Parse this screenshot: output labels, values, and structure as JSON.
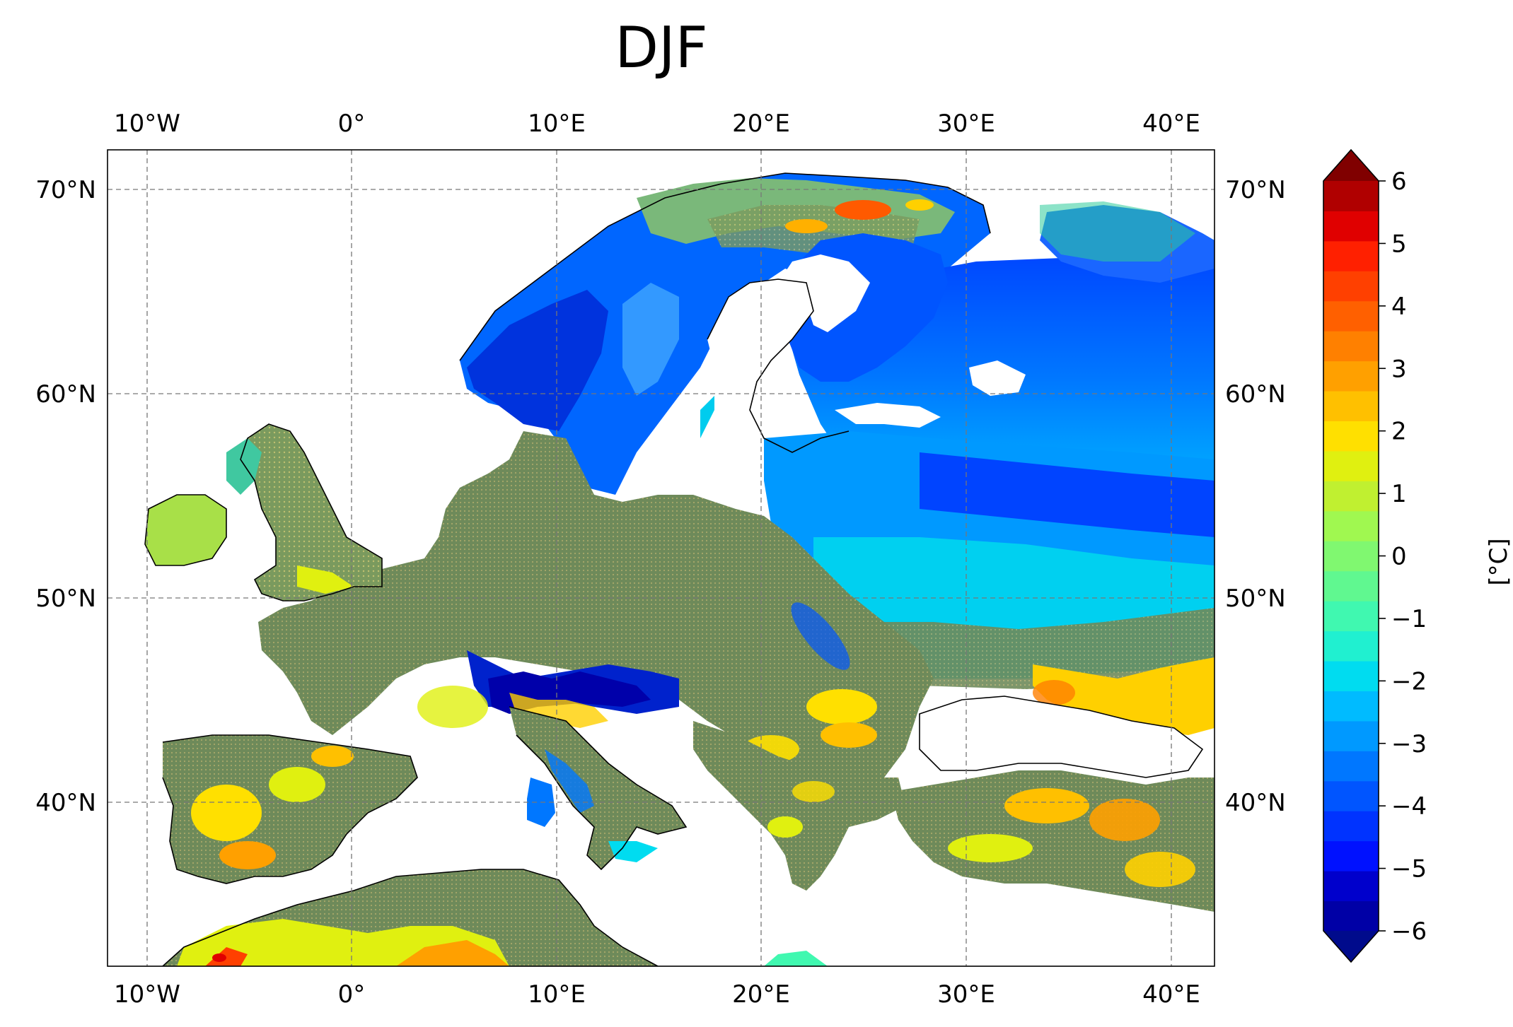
{
  "title": "DJF",
  "map": {
    "lon_ticks": [
      "10°W",
      "0°",
      "10°E",
      "20°E",
      "30°E",
      "40°E"
    ],
    "lat_ticks": [
      "70°N",
      "60°N",
      "50°N",
      "40°N"
    ],
    "gridlines": "dashed"
  },
  "colorbar": {
    "label": "[°C]",
    "ticks": [
      "6",
      "5",
      "4",
      "3",
      "2",
      "1",
      "0",
      "−1",
      "−2",
      "−3",
      "−4",
      "−5",
      "−6"
    ],
    "range": [
      -6,
      6
    ],
    "extend": "both",
    "colormap": "jet",
    "colors": [
      "#000b8c",
      "#0000a6",
      "#0000cc",
      "#0011ff",
      "#0033ff",
      "#0055ff",
      "#0077ff",
      "#0099ff",
      "#00bbff",
      "#00dcf0",
      "#20f0d0",
      "#40f8b0",
      "#60f890",
      "#80f870",
      "#a0f850",
      "#c0f030",
      "#e0f010",
      "#ffe000",
      "#ffc000",
      "#ffa000",
      "#ff8000",
      "#ff6000",
      "#ff4000",
      "#ff2000",
      "#e00000",
      "#b00000",
      "#800000"
    ]
  }
}
